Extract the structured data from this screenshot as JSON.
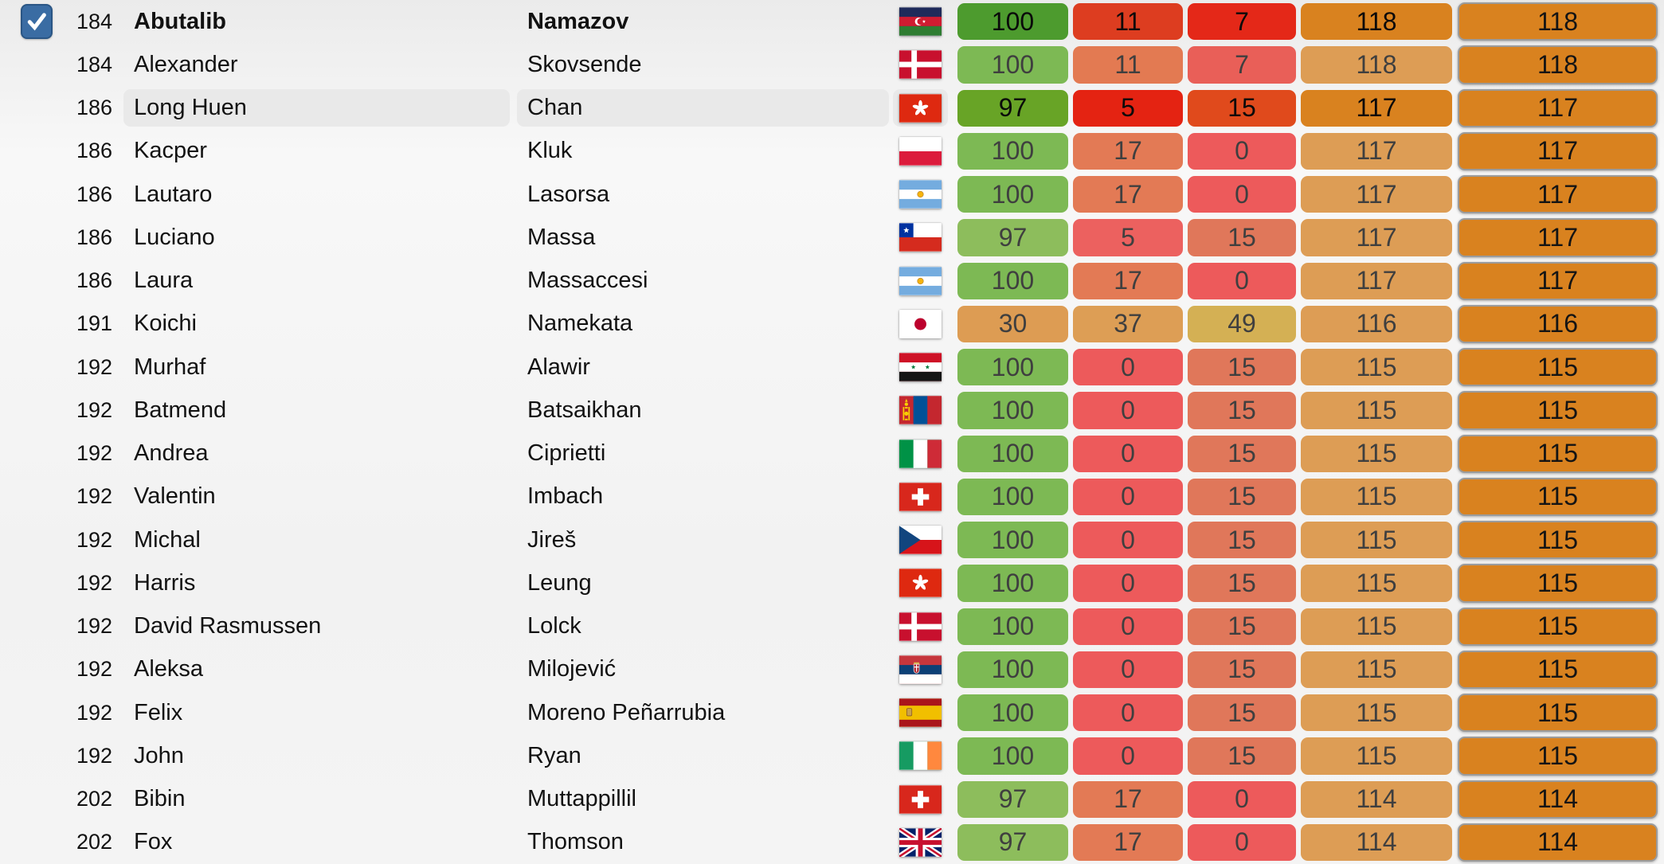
{
  "palette": {
    "checkbox_blue": "#3a6ca3",
    "checkbox_border": "#2a5685",
    "row_highlight_gray": "#e9e9e9",
    "total_button_orange": "#d9821f",
    "total_button_border": "#9b9b9b",
    "page_background_top": "#ebebeb",
    "page_background_bottom": "#f4f4f4"
  },
  "checkbox": {
    "checked": true
  },
  "rows": [
    {
      "rank": "184",
      "first": "Abutalib",
      "last": "Namazov",
      "country": "azerbaijan",
      "selected": true,
      "highlighted": false,
      "cells": [
        {
          "v": "100",
          "bg": "#4d9b2e",
          "fg": "#0a0a0a"
        },
        {
          "v": "11",
          "bg": "#dd3d20",
          "fg": "#0a0a0a"
        },
        {
          "v": "7",
          "bg": "#e42818",
          "fg": "#0a0a0a"
        },
        {
          "v": "118",
          "bg": "#d9821f",
          "fg": "#0a0a0a"
        },
        {
          "v": "118",
          "bg": "#d9821f",
          "fg": "#141414"
        }
      ]
    },
    {
      "rank": "184",
      "first": "Alexander",
      "last": "Skovsende",
      "country": "denmark",
      "selected": false,
      "highlighted": false,
      "cells": [
        {
          "v": "100",
          "bg": "#7db954",
          "fg": "#3f3f3f"
        },
        {
          "v": "11",
          "bg": "#e37a52",
          "fg": "#3f3f3f"
        },
        {
          "v": "7",
          "bg": "#e95f58",
          "fg": "#3f3f3f"
        },
        {
          "v": "118",
          "bg": "#dd9d55",
          "fg": "#3f3f3f"
        },
        {
          "v": "118",
          "bg": "#d9821f",
          "fg": "#141414"
        }
      ]
    },
    {
      "rank": "186",
      "first": "Long Huen",
      "last": "Chan",
      "country": "hongkong",
      "selected": false,
      "highlighted": true,
      "cells": [
        {
          "v": "97",
          "bg": "#68a426",
          "fg": "#0a0a0a"
        },
        {
          "v": "5",
          "bg": "#e42312",
          "fg": "#0a0a0a"
        },
        {
          "v": "15",
          "bg": "#e04a1c",
          "fg": "#0a0a0a"
        },
        {
          "v": "117",
          "bg": "#d9821f",
          "fg": "#0a0a0a"
        },
        {
          "v": "117",
          "bg": "#d9821f",
          "fg": "#141414"
        }
      ]
    },
    {
      "rank": "186",
      "first": "Kacper",
      "last": "Kluk",
      "country": "poland",
      "selected": false,
      "highlighted": false,
      "cells": [
        {
          "v": "100",
          "bg": "#7db954",
          "fg": "#3f3f3f"
        },
        {
          "v": "17",
          "bg": "#e37a55",
          "fg": "#3f3f3f"
        },
        {
          "v": "0",
          "bg": "#ed5a5b",
          "fg": "#3f3f3f"
        },
        {
          "v": "117",
          "bg": "#dd9d55",
          "fg": "#3f3f3f"
        },
        {
          "v": "117",
          "bg": "#d9821f",
          "fg": "#141414"
        }
      ]
    },
    {
      "rank": "186",
      "first": "Lautaro",
      "last": "Lasorsa",
      "country": "argentina",
      "selected": false,
      "highlighted": false,
      "cells": [
        {
          "v": "100",
          "bg": "#7db954",
          "fg": "#3f3f3f"
        },
        {
          "v": "17",
          "bg": "#e37a55",
          "fg": "#3f3f3f"
        },
        {
          "v": "0",
          "bg": "#ed5a5b",
          "fg": "#3f3f3f"
        },
        {
          "v": "117",
          "bg": "#dd9d55",
          "fg": "#3f3f3f"
        },
        {
          "v": "117",
          "bg": "#d9821f",
          "fg": "#141414"
        }
      ]
    },
    {
      "rank": "186",
      "first": "Luciano",
      "last": "Massa",
      "country": "chile",
      "selected": false,
      "highlighted": false,
      "cells": [
        {
          "v": "97",
          "bg": "#8dbd5c",
          "fg": "#3f3f3f"
        },
        {
          "v": "5",
          "bg": "#ec615f",
          "fg": "#3f3f3f"
        },
        {
          "v": "15",
          "bg": "#e0775a",
          "fg": "#3f3f3f"
        },
        {
          "v": "117",
          "bg": "#dd9d55",
          "fg": "#3f3f3f"
        },
        {
          "v": "117",
          "bg": "#d9821f",
          "fg": "#141414"
        }
      ]
    },
    {
      "rank": "186",
      "first": "Laura",
      "last": "Massaccesi",
      "country": "argentina",
      "selected": false,
      "highlighted": false,
      "cells": [
        {
          "v": "100",
          "bg": "#7db954",
          "fg": "#3f3f3f"
        },
        {
          "v": "17",
          "bg": "#e37a55",
          "fg": "#3f3f3f"
        },
        {
          "v": "0",
          "bg": "#ed5a5b",
          "fg": "#3f3f3f"
        },
        {
          "v": "117",
          "bg": "#dd9d55",
          "fg": "#3f3f3f"
        },
        {
          "v": "117",
          "bg": "#d9821f",
          "fg": "#141414"
        }
      ]
    },
    {
      "rank": "191",
      "first": "Koichi",
      "last": "Namekata",
      "country": "japan",
      "selected": false,
      "highlighted": false,
      "cells": [
        {
          "v": "30",
          "bg": "#dd9c53",
          "fg": "#3f3f3f"
        },
        {
          "v": "37",
          "bg": "#dd9e55",
          "fg": "#3f3f3f"
        },
        {
          "v": "49",
          "bg": "#d4b054",
          "fg": "#3f3f3f"
        },
        {
          "v": "116",
          "bg": "#dd9d55",
          "fg": "#3f3f3f"
        },
        {
          "v": "116",
          "bg": "#d9821f",
          "fg": "#141414"
        }
      ]
    },
    {
      "rank": "192",
      "first": "Murhaf",
      "last": "Alawir",
      "country": "syria",
      "selected": false,
      "highlighted": false,
      "cells": [
        {
          "v": "100",
          "bg": "#7db954",
          "fg": "#3f3f3f"
        },
        {
          "v": "0",
          "bg": "#ed5a5b",
          "fg": "#3f3f3f"
        },
        {
          "v": "15",
          "bg": "#e0775a",
          "fg": "#3f3f3f"
        },
        {
          "v": "115",
          "bg": "#dd9d55",
          "fg": "#3f3f3f"
        },
        {
          "v": "115",
          "bg": "#d9821f",
          "fg": "#141414"
        }
      ]
    },
    {
      "rank": "192",
      "first": "Batmend",
      "last": "Batsaikhan",
      "country": "mongolia",
      "selected": false,
      "highlighted": false,
      "cells": [
        {
          "v": "100",
          "bg": "#7db954",
          "fg": "#3f3f3f"
        },
        {
          "v": "0",
          "bg": "#ed5a5b",
          "fg": "#3f3f3f"
        },
        {
          "v": "15",
          "bg": "#e0775a",
          "fg": "#3f3f3f"
        },
        {
          "v": "115",
          "bg": "#dd9d55",
          "fg": "#3f3f3f"
        },
        {
          "v": "115",
          "bg": "#d9821f",
          "fg": "#141414"
        }
      ]
    },
    {
      "rank": "192",
      "first": "Andrea",
      "last": "Ciprietti",
      "country": "italy",
      "selected": false,
      "highlighted": false,
      "cells": [
        {
          "v": "100",
          "bg": "#7db954",
          "fg": "#3f3f3f"
        },
        {
          "v": "0",
          "bg": "#ed5a5b",
          "fg": "#3f3f3f"
        },
        {
          "v": "15",
          "bg": "#e0775a",
          "fg": "#3f3f3f"
        },
        {
          "v": "115",
          "bg": "#dd9d55",
          "fg": "#3f3f3f"
        },
        {
          "v": "115",
          "bg": "#d9821f",
          "fg": "#141414"
        }
      ]
    },
    {
      "rank": "192",
      "first": "Valentin",
      "last": "Imbach",
      "country": "switzerland",
      "selected": false,
      "highlighted": false,
      "cells": [
        {
          "v": "100",
          "bg": "#7db954",
          "fg": "#3f3f3f"
        },
        {
          "v": "0",
          "bg": "#ed5a5b",
          "fg": "#3f3f3f"
        },
        {
          "v": "15",
          "bg": "#e0775a",
          "fg": "#3f3f3f"
        },
        {
          "v": "115",
          "bg": "#dd9d55",
          "fg": "#3f3f3f"
        },
        {
          "v": "115",
          "bg": "#d9821f",
          "fg": "#141414"
        }
      ]
    },
    {
      "rank": "192",
      "first": "Michal",
      "last": "Jireš",
      "country": "czechia",
      "selected": false,
      "highlighted": false,
      "cells": [
        {
          "v": "100",
          "bg": "#7db954",
          "fg": "#3f3f3f"
        },
        {
          "v": "0",
          "bg": "#ed5a5b",
          "fg": "#3f3f3f"
        },
        {
          "v": "15",
          "bg": "#e0775a",
          "fg": "#3f3f3f"
        },
        {
          "v": "115",
          "bg": "#dd9d55",
          "fg": "#3f3f3f"
        },
        {
          "v": "115",
          "bg": "#d9821f",
          "fg": "#141414"
        }
      ]
    },
    {
      "rank": "192",
      "first": "Harris",
      "last": "Leung",
      "country": "hongkong",
      "selected": false,
      "highlighted": false,
      "cells": [
        {
          "v": "100",
          "bg": "#7db954",
          "fg": "#3f3f3f"
        },
        {
          "v": "0",
          "bg": "#ed5a5b",
          "fg": "#3f3f3f"
        },
        {
          "v": "15",
          "bg": "#e0775a",
          "fg": "#3f3f3f"
        },
        {
          "v": "115",
          "bg": "#dd9d55",
          "fg": "#3f3f3f"
        },
        {
          "v": "115",
          "bg": "#d9821f",
          "fg": "#141414"
        }
      ]
    },
    {
      "rank": "192",
      "first": "David Rasmussen",
      "last": "Lolck",
      "country": "denmark",
      "selected": false,
      "highlighted": false,
      "cells": [
        {
          "v": "100",
          "bg": "#7db954",
          "fg": "#3f3f3f"
        },
        {
          "v": "0",
          "bg": "#ed5a5b",
          "fg": "#3f3f3f"
        },
        {
          "v": "15",
          "bg": "#e0775a",
          "fg": "#3f3f3f"
        },
        {
          "v": "115",
          "bg": "#dd9d55",
          "fg": "#3f3f3f"
        },
        {
          "v": "115",
          "bg": "#d9821f",
          "fg": "#141414"
        }
      ]
    },
    {
      "rank": "192",
      "first": "Aleksa",
      "last": "Milojević",
      "country": "serbia",
      "selected": false,
      "highlighted": false,
      "cells": [
        {
          "v": "100",
          "bg": "#7db954",
          "fg": "#3f3f3f"
        },
        {
          "v": "0",
          "bg": "#ed5a5b",
          "fg": "#3f3f3f"
        },
        {
          "v": "15",
          "bg": "#e0775a",
          "fg": "#3f3f3f"
        },
        {
          "v": "115",
          "bg": "#dd9d55",
          "fg": "#3f3f3f"
        },
        {
          "v": "115",
          "bg": "#d9821f",
          "fg": "#141414"
        }
      ]
    },
    {
      "rank": "192",
      "first": "Felix",
      "last": "Moreno Peñarrubia",
      "country": "spain",
      "selected": false,
      "highlighted": false,
      "cells": [
        {
          "v": "100",
          "bg": "#7db954",
          "fg": "#3f3f3f"
        },
        {
          "v": "0",
          "bg": "#ed5a5b",
          "fg": "#3f3f3f"
        },
        {
          "v": "15",
          "bg": "#e0775a",
          "fg": "#3f3f3f"
        },
        {
          "v": "115",
          "bg": "#dd9d55",
          "fg": "#3f3f3f"
        },
        {
          "v": "115",
          "bg": "#d9821f",
          "fg": "#141414"
        }
      ]
    },
    {
      "rank": "192",
      "first": "John",
      "last": "Ryan",
      "country": "ireland",
      "selected": false,
      "highlighted": false,
      "cells": [
        {
          "v": "100",
          "bg": "#7db954",
          "fg": "#3f3f3f"
        },
        {
          "v": "0",
          "bg": "#ed5a5b",
          "fg": "#3f3f3f"
        },
        {
          "v": "15",
          "bg": "#e0775a",
          "fg": "#3f3f3f"
        },
        {
          "v": "115",
          "bg": "#dd9d55",
          "fg": "#3f3f3f"
        },
        {
          "v": "115",
          "bg": "#d9821f",
          "fg": "#141414"
        }
      ]
    },
    {
      "rank": "202",
      "first": "Bibin",
      "last": "Muttappillil",
      "country": "switzerland",
      "selected": false,
      "highlighted": false,
      "cells": [
        {
          "v": "97",
          "bg": "#8dbd5c",
          "fg": "#3f3f3f"
        },
        {
          "v": "17",
          "bg": "#e37a55",
          "fg": "#3f3f3f"
        },
        {
          "v": "0",
          "bg": "#ed5a5b",
          "fg": "#3f3f3f"
        },
        {
          "v": "114",
          "bg": "#dd9d55",
          "fg": "#3f3f3f"
        },
        {
          "v": "114",
          "bg": "#d9821f",
          "fg": "#141414"
        }
      ]
    },
    {
      "rank": "202",
      "first": "Fox",
      "last": "Thomson",
      "country": "uk",
      "selected": false,
      "highlighted": false,
      "cells": [
        {
          "v": "97",
          "bg": "#8dbd5c",
          "fg": "#3f3f3f"
        },
        {
          "v": "17",
          "bg": "#e37a55",
          "fg": "#3f3f3f"
        },
        {
          "v": "0",
          "bg": "#ed5a5b",
          "fg": "#3f3f3f"
        },
        {
          "v": "114",
          "bg": "#dd9d55",
          "fg": "#3f3f3f"
        },
        {
          "v": "114",
          "bg": "#d9821f",
          "fg": "#141414"
        }
      ]
    }
  ]
}
